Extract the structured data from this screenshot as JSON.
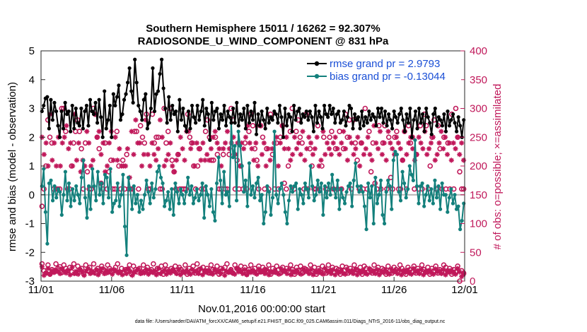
{
  "chart_data": {
    "type": "line",
    "title_line1": "Southern Hemisphere 15011 / 16262 = 92.307%",
    "title_line2": "RADIOSONDE_U_WIND_COMPONENT @ 831 hPa",
    "xlabel": "Nov.01,2016 00:00:00 start",
    "ylabel": "rmse and bias (model - observation)",
    "ylabel_right": "# of obs: o=possible; ×=assimilated",
    "xlim": [
      0,
      30
    ],
    "ylim": [
      -3,
      5
    ],
    "ylim_right": [
      0,
      400
    ],
    "x_ticks": [
      0,
      5,
      10,
      15,
      20,
      25,
      30
    ],
    "x_tick_labels": [
      "11/01",
      "11/06",
      "11/11",
      "11/16",
      "11/21",
      "11/26",
      "12/01"
    ],
    "y_tick_labels": [
      "-3",
      "-2",
      "-1",
      "0",
      "1",
      "2",
      "3",
      "4",
      "5"
    ],
    "y_right_tick_labels": [
      "0",
      "50",
      "100",
      "150",
      "200",
      "250",
      "300",
      "350",
      "400"
    ],
    "footnote": "data file: /Users/raeder/DAI/ATM_forcXX/CAM6_setup/f.e21.FHIST_BGC.f09_025.CAM6assim.011/Diags_NTrS_2016-11/obs_diag_output.nc",
    "colors": {
      "rmse": "#000000",
      "bias": "#13807c",
      "obs": "#c0185a",
      "zero": "#b4b4b4"
    },
    "series": [
      {
        "name": "rmse grand pr = 2.9793",
        "values": [
          2.9,
          3.1,
          3.35,
          3.4,
          2.3,
          3.3,
          2.6,
          3.2,
          2.9,
          2.4,
          2.0,
          2.9,
          2.3,
          3.2,
          2.8,
          2.9,
          2.2,
          3.1,
          2.3,
          3.0,
          2.5,
          2.4,
          3.0,
          2.3,
          2.9,
          3.1,
          2.4,
          3.3,
          2.9,
          2.8,
          3.2,
          2.5,
          3.3,
          2.7,
          2.0,
          3.6,
          2.3,
          2.6,
          3.1,
          2.0,
          3.5,
          3.1,
          3.4,
          3.8,
          2.6,
          2.8,
          3.3,
          3.5,
          3.9,
          4.4,
          3.6,
          3.2,
          4.7,
          3.9,
          3.1,
          2.9,
          2.6,
          3.3,
          3.5,
          2.3,
          2.5,
          3.0,
          4.4,
          2.9,
          3.5,
          3.6,
          4.2,
          4.7,
          3.7,
          3.0,
          2.5,
          3.4,
          2.6,
          3.1,
          2.8,
          2.9,
          2.2,
          3.3,
          2.6,
          3.0,
          2.4,
          2.2,
          2.9,
          2.3,
          3.1,
          2.7,
          2.5,
          3.1,
          2.6,
          2.9,
          3.3,
          2.4,
          3.0,
          2.8,
          1.9,
          3.2,
          2.6,
          2.9,
          3.0,
          2.3,
          2.8,
          2.6,
          3.1,
          2.4,
          2.9,
          2.7,
          2.5,
          3.0,
          2.5,
          3.2,
          2.4,
          2.8,
          2.6,
          3.0,
          2.3,
          3.1,
          2.5,
          2.9,
          2.6,
          3.2,
          2.1,
          2.8,
          2.4,
          2.9,
          2.6,
          2.3,
          3.0,
          2.5,
          2.7,
          2.6,
          2.9,
          2.8,
          2.5,
          3.1,
          2.7,
          2.0,
          3.0,
          2.4,
          2.8,
          2.7,
          2.2,
          3.1,
          2.6,
          2.9,
          3.0,
          2.5,
          2.8,
          2.7,
          2.9,
          2.6,
          2.9,
          2.7,
          2.2,
          3.1,
          2.5,
          2.9,
          2.7,
          2.3,
          3.1,
          2.8,
          2.7,
          3.1,
          2.8,
          3.0,
          2.5,
          2.8,
          2.9,
          2.5,
          2.6,
          2.9,
          2.4,
          2.7,
          3.1,
          3.0,
          2.3,
          2.8,
          2.6,
          2.7,
          2.3,
          2.9,
          2.4,
          2.7,
          2.5,
          2.9,
          2.6,
          2.8,
          2.7,
          2.4,
          3.0,
          2.7,
          3.0,
          2.5,
          2.9,
          2.4,
          2.8,
          2.6,
          2.3,
          2.9,
          2.7,
          2.5,
          2.8,
          3.0,
          2.6,
          2.2,
          2.8,
          2.5,
          3.0,
          2.0,
          2.6,
          2.9,
          2.3,
          3.0,
          2.5,
          2.8,
          2.2,
          3.0,
          2.7,
          2.5,
          2.1,
          2.8,
          3.0,
          2.4,
          2.7,
          2.6,
          2.4,
          2.8,
          2.2,
          2.9,
          2.4,
          2.6,
          2.8,
          2.5,
          2.2,
          2.7,
          2.4,
          2.0,
          2.6
        ]
      },
      {
        "name": "bias grand pr = -0.13044",
        "values": [
          0.3,
          0.9,
          -0.6,
          -1.7,
          0.4,
          0.5,
          -0.2,
          0.3,
          -0.1,
          0.2,
          0.1,
          -0.7,
          0.0,
          0.8,
          -0.2,
          0.4,
          -0.4,
          0.2,
          -0.2,
          0.3,
          0.0,
          -0.3,
          0.6,
          1.2,
          -0.1,
          -0.8,
          0.3,
          -0.5,
          0.9,
          0.3,
          -0.2,
          0.8,
          0.0,
          0.4,
          -0.3,
          0.7,
          0.6,
          -0.1,
          0.9,
          -0.6,
          -0.3,
          -0.2,
          0.4,
          -0.4,
          0.0,
          0.7,
          -1.1,
          -2.1,
          0.6,
          0.2,
          -0.5,
          0.3,
          -0.3,
          0.0,
          -0.6,
          -0.2,
          -0.5,
          0.0,
          0.5,
          0.1,
          -0.3,
          0.4,
          -0.1,
          0.2,
          0.8,
          1.0,
          0.6,
          0.4,
          -0.4,
          -0.2,
          0.1,
          -0.5,
          0.2,
          -0.7,
          0.4,
          0.1,
          -0.3,
          0.2,
          0.0,
          -0.3,
          0.1,
          0.6,
          0.0,
          0.3,
          -0.3,
          -0.1,
          0.2,
          -0.2,
          0.0,
          0.4,
          -0.8,
          0.3,
          0.0,
          -0.4,
          0.2,
          -0.6,
          -0.9,
          0.4,
          1.3,
          0.5,
          -0.3,
          0.8,
          0.0,
          0.1,
          -0.4,
          2.5,
          1.3,
          1.7,
          -0.2,
          2.2,
          1.7,
          1.0,
          0.1,
          0.5,
          -0.4,
          1.1,
          0.0,
          0.3,
          -0.1,
          0.4,
          0.6,
          -0.2,
          0.0,
          -1.0,
          -0.6,
          0.3,
          0.1,
          -0.7,
          -0.1,
          2.2,
          0.0,
          -0.3,
          0.2,
          0.4,
          0.0,
          -0.6,
          -1.0,
          -0.2,
          0.3,
          0.1,
          0.3,
          0.4,
          -0.5,
          0.2,
          0.0,
          -0.3,
          0.4,
          0.2,
          -0.1,
          1.0,
          0.3,
          -0.2,
          0.0,
          0.5,
          0.1,
          0.4,
          -0.7,
          0.3,
          -0.1,
          0.4,
          0.0,
          0.7,
          0.2,
          -0.1,
          0.5,
          -0.5,
          0.2,
          -0.1,
          -0.3,
          0.1,
          0.3,
          0.4,
          -0.4,
          0.5,
          1.1,
          0.3,
          0.1,
          0.3,
          0.1,
          -0.4,
          -1.2,
          0.4,
          -0.1,
          0.3,
          -1.0,
          0.6,
          -0.3,
          0.0,
          0.5,
          -0.7,
          -1.0,
          0.1,
          0.5,
          0.3,
          -0.5,
          1.2,
          1.5,
          1.4,
          0.1,
          -0.2,
          0.8,
          0.4,
          -0.1,
          0.2,
          1.0,
          0.7,
          0.5,
          1.9,
          0.3,
          -0.3,
          0.3,
          0.4,
          -0.4,
          0.0,
          0.3,
          -0.2,
          0.2,
          -0.3,
          0.5,
          -0.1,
          0.3,
          -0.5,
          0.4,
          0.0,
          0.0,
          -0.6,
          -0.1,
          0.2,
          -0.3,
          0.0,
          -0.5,
          -0.4,
          -1.2,
          -0.9,
          -0.3
        ]
      }
    ],
    "obs_possible": [
      130,
      160,
      200,
      280,
      250,
      240,
      160,
      160,
      160,
      160,
      300,
      300,
      260,
      160,
      160,
      200,
      240,
      260,
      280,
      260,
      230,
      160,
      240,
      190,
      160,
      160,
      300,
      290,
      250,
      230,
      170,
      160,
      240,
      160,
      190,
      210,
      160,
      160,
      260,
      200,
      160,
      210,
      160,
      220,
      160,
      160,
      160,
      260,
      260,
      160,
      270,
      250,
      240,
      290,
      160,
      160,
      290,
      240,
      250,
      250,
      160,
      160,
      300,
      240,
      260,
      300,
      210,
      190,
      160,
      220,
      160,
      160,
      160,
      160,
      290,
      250,
      240,
      200,
      160,
      200,
      230,
      160,
      160,
      260,
      280,
      250,
      210,
      210,
      250,
      220,
      160,
      160,
      220,
      160,
      160,
      220,
      300,
      280,
      160,
      210,
      160,
      200,
      160,
      240,
      160,
      260,
      290,
      270,
      230,
      210,
      160,
      270,
      250,
      160,
      230,
      160,
      290,
      220,
      160,
      240,
      160,
      250,
      270,
      170,
      160,
      200,
      260,
      300,
      160,
      260,
      280,
      250,
      240,
      160,
      290,
      160,
      230,
      200,
      160,
      160,
      270,
      160,
      200,
      250,
      160,
      160,
      250,
      260,
      160,
      230,
      160,
      260,
      160,
      230,
      290,
      250,
      280,
      160,
      280,
      240,
      210,
      160,
      240,
      160,
      300,
      160,
      260,
      190,
      240,
      170,
      160,
      270,
      160,
      240,
      270,
      160,
      250,
      180,
      160,
      250,
      260,
      160,
      160,
      210,
      260,
      160,
      270,
      240,
      250,
      160,
      220,
      160,
      270,
      160,
      290,
      270,
      160,
      200,
      250,
      280,
      160,
      270,
      230,
      160,
      250,
      160,
      240,
      160,
      290,
      160,
      300,
      250,
      190,
      160,
      160
    ],
    "obs_possible_low": [
      30,
      18,
      14,
      28,
      12,
      20,
      16,
      30,
      22,
      25,
      15,
      28,
      22,
      18,
      24,
      16,
      30,
      14,
      26,
      20,
      22,
      12,
      28,
      18,
      24,
      16,
      30,
      14,
      22,
      18,
      26,
      20,
      14,
      28,
      22,
      16,
      18,
      24,
      30,
      16,
      22,
      14,
      20,
      18,
      28,
      12,
      26,
      20,
      16,
      22,
      14,
      28,
      18,
      24,
      16,
      20,
      30,
      14,
      22,
      18,
      26,
      12,
      28,
      20,
      16,
      22,
      18,
      26,
      14,
      24,
      20,
      16,
      28,
      12,
      22,
      18,
      26,
      14,
      30,
      20,
      16,
      24,
      18,
      22,
      14,
      28,
      20,
      16,
      26,
      12,
      22,
      18,
      24,
      30,
      16,
      20,
      14,
      28,
      22,
      18,
      26,
      16,
      24,
      12,
      20,
      28,
      18,
      22,
      14,
      26,
      16,
      24,
      20,
      18,
      28,
      12,
      22,
      16,
      26,
      20,
      14,
      24,
      18,
      22,
      16,
      28,
      20,
      12,
      24,
      18,
      26,
      14,
      22,
      20,
      16,
      28,
      18,
      24,
      12,
      22,
      16,
      26,
      20,
      14,
      28,
      18,
      24,
      16,
      22,
      20,
      12,
      26,
      18,
      24,
      14,
      22,
      16,
      28,
      20,
      18,
      24,
      12,
      26,
      22,
      16,
      20,
      14,
      28,
      18,
      24,
      16,
      22,
      20,
      12,
      26,
      18,
      14,
      24,
      20,
      16,
      28,
      22,
      18,
      12,
      24,
      20,
      16,
      26,
      14,
      22,
      18,
      28,
      20,
      16,
      24,
      12,
      22,
      18,
      26,
      14,
      20,
      16,
      28,
      24,
      18,
      22,
      12,
      20,
      16,
      26,
      0,
      18,
      14
    ],
    "obs_assimilated": [
      250,
      220,
      240,
      200,
      290,
      210,
      240,
      200,
      250,
      200,
      240,
      250,
      270,
      230,
      240,
      200,
      290,
      210,
      240,
      190,
      210,
      200,
      260,
      240,
      200,
      210,
      290,
      250,
      260,
      220,
      240,
      190,
      200,
      240,
      260,
      210,
      250,
      210,
      230,
      200,
      200,
      200,
      230,
      180,
      260,
      220,
      280,
      240,
      240,
      200,
      220,
      280,
      220,
      200,
      240,
      220,
      210,
      230,
      280,
      250,
      200,
      210,
      220,
      240,
      200,
      190,
      210,
      220,
      250,
      230,
      210,
      260,
      260,
      230,
      240,
      200,
      240,
      230,
      210,
      240,
      210,
      220,
      210,
      230,
      250,
      260,
      240,
      230,
      200,
      230,
      240,
      260,
      230,
      240,
      250,
      220,
      240,
      200,
      240,
      230,
      250,
      270,
      240,
      230,
      210,
      240,
      200,
      270,
      220,
      240,
      200,
      230,
      210,
      230,
      240,
      250,
      200,
      240,
      270,
      230,
      250,
      230,
      210,
      220,
      250,
      230,
      240,
      220,
      260,
      210,
      230,
      250,
      240,
      220,
      230,
      250,
      200,
      210,
      260,
      220,
      240,
      230,
      220,
      240,
      250,
      230,
      220,
      240,
      260,
      230,
      210,
      250,
      240,
      220,
      230,
      250,
      200,
      240,
      220,
      230,
      250,
      220,
      210,
      270,
      240,
      230,
      260,
      220,
      240,
      210,
      260,
      240,
      230,
      220,
      250,
      240,
      230,
      210,
      260,
      220,
      240,
      250,
      230,
      210,
      220,
      250,
      240,
      230,
      260,
      220,
      230,
      240,
      250,
      210,
      220,
      240,
      260,
      230,
      250,
      220,
      240,
      210,
      240,
      230,
      250,
      220,
      240,
      210
    ],
    "obs_assimilated_low": [
      25,
      10,
      14,
      22,
      12,
      18,
      15,
      20,
      16,
      13,
      22,
      17,
      14,
      19,
      11,
      24,
      13,
      17,
      12,
      20,
      16,
      10,
      18,
      22,
      13,
      17,
      14,
      20,
      11,
      16,
      22,
      13,
      18,
      15,
      19,
      12,
      20,
      17,
      14,
      16,
      11,
      19,
      13,
      22,
      17,
      10,
      15,
      18,
      21,
      13,
      16,
      14,
      20,
      12,
      18,
      15,
      17,
      11,
      22,
      13,
      16,
      19,
      12,
      18,
      14,
      20,
      16,
      13,
      21,
      11,
      17,
      15,
      19,
      14,
      12,
      20,
      16,
      18,
      13,
      22,
      11,
      17,
      15,
      19,
      14,
      12,
      20,
      16,
      18,
      13,
      21,
      10,
      17,
      15,
      19,
      14,
      12,
      22,
      16,
      18,
      13,
      20,
      11,
      17,
      15,
      19,
      14,
      12,
      21,
      16,
      18,
      13,
      20,
      11,
      17,
      15,
      19,
      14,
      12,
      22,
      16,
      18,
      13,
      20,
      11,
      17,
      15,
      19,
      14,
      12,
      21,
      16,
      18,
      13,
      20,
      11,
      17,
      15,
      19,
      14,
      12,
      22,
      16,
      18,
      13,
      20,
      11,
      17,
      15,
      19,
      14,
      12,
      21,
      16,
      18,
      13,
      20,
      11,
      17,
      15,
      19,
      14,
      12,
      22,
      16,
      18,
      13,
      20,
      11,
      17,
      15,
      19,
      14,
      12,
      21,
      16,
      18,
      13,
      20,
      11,
      17,
      15,
      19,
      14,
      12,
      22,
      16,
      18,
      13,
      20,
      11,
      17,
      15,
      19,
      14,
      12,
      21,
      16,
      18,
      13,
      20,
      11,
      17,
      15,
      19,
      14,
      12,
      22,
      16,
      8,
      12
    ]
  }
}
